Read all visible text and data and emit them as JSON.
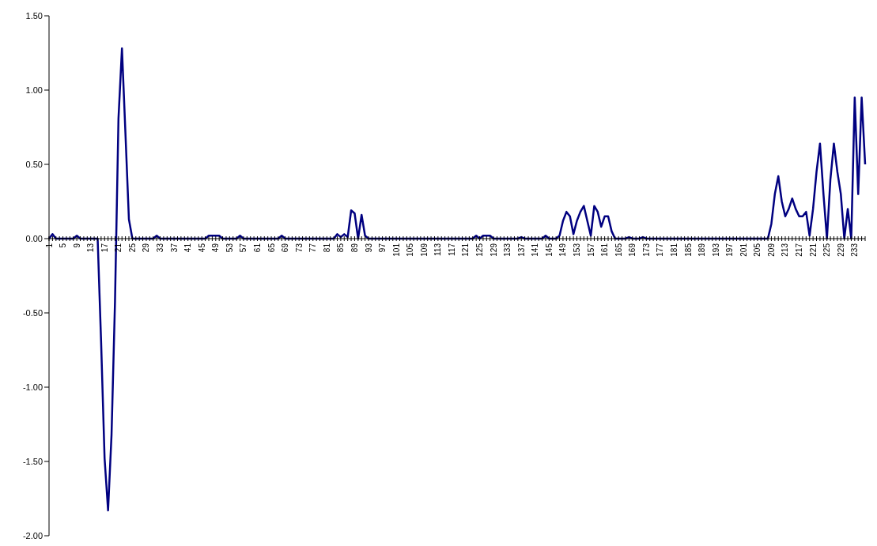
{
  "chart_data": {
    "type": "line",
    "categories": [
      "1",
      null,
      null,
      null,
      "5",
      null,
      null,
      null,
      "9",
      null,
      null,
      null,
      "13",
      null,
      null,
      null,
      "17",
      null,
      null,
      null,
      "21",
      null,
      null,
      null,
      "25",
      null,
      null,
      null,
      "29",
      null,
      null,
      null,
      "33",
      null,
      null,
      null,
      "37",
      null,
      null,
      null,
      "41",
      null,
      null,
      null,
      "45",
      null,
      null,
      null,
      "49",
      null,
      null,
      null,
      "53",
      null,
      null,
      null,
      "57",
      null,
      null,
      null,
      "61",
      null,
      null,
      null,
      "65",
      null,
      null,
      null,
      "69",
      null,
      null,
      null,
      "73",
      null,
      null,
      null,
      "77",
      null,
      null,
      null,
      "81",
      null,
      null,
      null,
      "85",
      null,
      null,
      null,
      "89",
      null,
      null,
      null,
      "93",
      null,
      null,
      null,
      "97",
      null,
      null,
      null,
      "101",
      null,
      null,
      null,
      "105",
      null,
      null,
      null,
      "109",
      null,
      null,
      null,
      "113",
      null,
      null,
      null,
      "117",
      null,
      null,
      null,
      "121",
      null,
      null,
      null,
      "125",
      null,
      null,
      null,
      "129",
      null,
      null,
      null,
      "133",
      null,
      null,
      null,
      "137",
      null,
      null,
      null,
      "141",
      null,
      null,
      null,
      "145",
      null,
      null,
      null,
      "149",
      null,
      null,
      null,
      "153",
      null,
      null,
      null,
      "157",
      null,
      null,
      null,
      "161",
      null,
      null,
      null,
      "165",
      null,
      null,
      null,
      "169",
      null,
      null,
      null,
      "173",
      null,
      null,
      null,
      "177",
      null,
      null,
      null,
      "181",
      null,
      null,
      null,
      "185",
      null,
      null,
      null,
      "189",
      null,
      null,
      null,
      "193",
      null,
      null,
      null,
      "197",
      null,
      null,
      null,
      "201",
      null,
      null,
      null,
      "205",
      null,
      null,
      null,
      "209",
      null,
      null,
      null,
      "213",
      null,
      null,
      null,
      "217",
      null,
      null,
      null,
      "221",
      null,
      null,
      null,
      "225",
      null,
      null,
      null,
      "229",
      null,
      null,
      null,
      "233",
      null,
      null,
      null
    ],
    "values": [
      0,
      0.03,
      0,
      0,
      0,
      0,
      0,
      0,
      0.02,
      0,
      0,
      0,
      0,
      0,
      0,
      -0.7,
      -1.48,
      -1.83,
      -1.32,
      -0.42,
      0.81,
      1.28,
      0.71,
      0.13,
      0,
      0,
      0,
      0,
      0,
      0,
      0,
      0.02,
      0,
      0,
      0,
      0,
      0,
      0,
      0,
      0,
      0,
      0,
      0,
      0,
      0,
      0,
      0.02,
      0.02,
      0.02,
      0.02,
      0,
      0,
      0,
      0,
      0,
      0.02,
      0,
      0,
      0,
      0,
      0,
      0,
      0,
      0,
      0,
      0,
      0,
      0.02,
      0,
      0,
      0,
      0,
      0,
      0,
      0,
      0,
      0,
      0,
      0,
      0,
      0,
      0,
      0,
      0.03,
      0.01,
      0.03,
      0.01,
      0.19,
      0.17,
      0,
      0.16,
      0.02,
      0,
      0,
      0,
      0,
      0,
      0,
      0,
      0,
      0,
      0,
      0,
      0,
      0,
      0,
      0,
      0,
      0,
      0,
      0,
      0,
      0,
      0,
      0,
      0,
      0,
      0,
      0,
      0,
      0,
      0,
      0,
      0.02,
      0,
      0.02,
      0.02,
      0.02,
      0,
      0,
      0,
      0,
      0,
      0,
      0,
      0,
      0.01,
      0,
      0,
      0,
      0,
      0,
      0,
      0.02,
      0,
      0,
      0,
      0.02,
      0.12,
      0.18,
      0.15,
      0.03,
      0.12,
      0.18,
      0.22,
      0.12,
      0.02,
      0.22,
      0.18,
      0.08,
      0.15,
      0.15,
      0.05,
      0,
      0,
      0,
      0,
      0.01,
      0,
      0,
      0,
      0.01,
      0,
      0,
      0,
      0,
      0,
      0,
      0,
      0,
      0,
      0,
      0,
      0,
      0,
      0,
      0,
      0,
      0,
      0,
      0,
      0,
      0,
      0,
      0,
      0,
      0,
      0,
      0,
      0,
      0,
      0,
      0,
      0,
      0,
      0,
      0,
      0,
      0.1,
      0.3,
      0.42,
      0.25,
      0.15,
      0.2,
      0.27,
      0.2,
      0.15,
      0.15,
      0.18,
      0.02,
      0.2,
      0.45,
      0.64,
      0.3,
      0,
      0.4,
      0.64,
      0.45,
      0.3,
      0,
      0.2,
      0,
      0.95,
      0.3,
      0.95,
      0.5
    ],
    "color": "#000080",
    "ylim": [
      -2,
      1.5
    ],
    "yticks": [
      {
        "value": -2,
        "label": "-2.00"
      },
      {
        "value": -1.5,
        "label": "-1.50"
      },
      {
        "value": -1,
        "label": "-1.00"
      },
      {
        "value": -0.5,
        "label": "-0.50"
      },
      {
        "value": 0,
        "label": "0.00"
      },
      {
        "value": 0.5,
        "label": "0.50"
      },
      {
        "value": 1,
        "label": "1.00"
      },
      {
        "value": 1.5,
        "label": "1.50"
      }
    ],
    "grid": false,
    "legend": false,
    "marker": "none",
    "line_style": "solid"
  }
}
